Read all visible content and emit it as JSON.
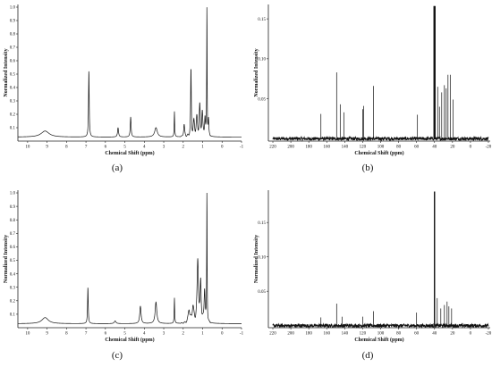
{
  "chart_data": [
    {
      "id": "a",
      "type": "line",
      "caption": "(a)",
      "xlabel": "Chemical Shift (ppm)",
      "ylabel": "Normalized Intensity",
      "xlim": [
        10.5,
        -1
      ],
      "ylim": [
        0,
        1.02
      ],
      "xticks": [
        10,
        9,
        8,
        7,
        6,
        5,
        4,
        3,
        2,
        1,
        0,
        -1
      ],
      "yticks": [
        0.1,
        0.2,
        0.3,
        0.4,
        0.5,
        0.6,
        0.7,
        0.8,
        0.9,
        1.0
      ],
      "ytick_labels": [
        "0.1",
        "0.2",
        "0.3",
        "0.4",
        "0.5",
        "0.6",
        "0.7",
        "0.8",
        "0.9",
        "1.0"
      ],
      "xtick_labels": [
        "10",
        "9",
        "8",
        "7",
        "6",
        "5",
        "4",
        "3",
        "2",
        "1",
        "0",
        "-1"
      ],
      "baseline": 0.03,
      "peaks": [
        {
          "x": 9.1,
          "h": 0.045,
          "w": 0.25
        },
        {
          "x": 6.85,
          "h": 0.5,
          "w": 0.02
        },
        {
          "x": 5.35,
          "h": 0.07,
          "w": 0.03
        },
        {
          "x": 4.7,
          "h": 0.15,
          "w": 0.025
        },
        {
          "x": 3.4,
          "h": 0.07,
          "w": 0.08
        },
        {
          "x": 2.45,
          "h": 0.19,
          "w": 0.015
        },
        {
          "x": 1.95,
          "h": 0.09,
          "w": 0.03
        },
        {
          "x": 1.6,
          "h": 0.5,
          "w": 0.02
        },
        {
          "x": 1.45,
          "h": 0.1,
          "w": 0.04
        },
        {
          "x": 1.3,
          "h": 0.13,
          "w": 0.04
        },
        {
          "x": 1.15,
          "h": 0.22,
          "w": 0.03
        },
        {
          "x": 1.02,
          "h": 0.18,
          "w": 0.03
        },
        {
          "x": 0.88,
          "h": 0.14,
          "w": 0.025
        },
        {
          "x": 0.78,
          "h": 0.99,
          "w": 0.012
        },
        {
          "x": 0.7,
          "h": 0.12,
          "w": 0.02
        }
      ]
    },
    {
      "id": "b",
      "type": "line",
      "caption": "(b)",
      "xlabel": "Chemical Shift (ppm)",
      "ylabel": "Normalized Intensity",
      "xlim": [
        225,
        -22
      ],
      "ylim": [
        -0.003,
        0.168
      ],
      "xticks": [
        220,
        200,
        180,
        160,
        140,
        120,
        100,
        80,
        60,
        40,
        20,
        0,
        -20
      ],
      "yticks": [
        0.05,
        0.1,
        0.15
      ],
      "ytick_labels": [
        "0.05",
        "0.10",
        "0.15"
      ],
      "xtick_labels": [
        "220",
        "200",
        "180",
        "160",
        "140",
        "120",
        "100",
        "80",
        "60",
        "40",
        "20",
        "0",
        "-20"
      ],
      "baseline": 0.0,
      "peaks": [
        {
          "x": 166.5,
          "h": 0.031
        },
        {
          "x": 149,
          "h": 0.083
        },
        {
          "x": 145,
          "h": 0.043
        },
        {
          "x": 141,
          "h": 0.033
        },
        {
          "x": 120,
          "h": 0.037
        },
        {
          "x": 119,
          "h": 0.041
        },
        {
          "x": 108,
          "h": 0.066
        },
        {
          "x": 59,
          "h": 0.03
        },
        {
          "x": 40.5,
          "h": 0.166
        },
        {
          "x": 39.5,
          "h": 0.166
        },
        {
          "x": 36.5,
          "h": 0.065
        },
        {
          "x": 34.5,
          "h": 0.04
        },
        {
          "x": 32,
          "h": 0.058
        },
        {
          "x": 29,
          "h": 0.067
        },
        {
          "x": 27,
          "h": 0.063
        },
        {
          "x": 25,
          "h": 0.08
        },
        {
          "x": 22.5,
          "h": 0.08
        },
        {
          "x": 19.5,
          "h": 0.049
        }
      ]
    },
    {
      "id": "c",
      "type": "line",
      "caption": "(c)",
      "xlabel": "Chemical Shift (ppm)",
      "ylabel": "Normalized Intensity",
      "xlim": [
        10.5,
        -1
      ],
      "ylim": [
        0,
        1.02
      ],
      "xticks": [
        10,
        9,
        8,
        7,
        6,
        5,
        4,
        3,
        2,
        1,
        0,
        -1
      ],
      "yticks": [
        0.1,
        0.2,
        0.3,
        0.4,
        0.5,
        0.6,
        0.7,
        0.8,
        0.9,
        1.0
      ],
      "ytick_labels": [
        "0.1",
        "0.2",
        "0.3",
        "0.4",
        "0.5",
        "0.6",
        "0.7",
        "0.8",
        "0.9",
        "1.0"
      ],
      "xtick_labels": [
        "10",
        "9",
        "8",
        "7",
        "6",
        "5",
        "4",
        "3",
        "2",
        "1",
        "0",
        "-1"
      ],
      "baseline": 0.03,
      "peaks": [
        {
          "x": 9.1,
          "h": 0.045,
          "w": 0.2
        },
        {
          "x": 6.9,
          "h": 0.27,
          "w": 0.02
        },
        {
          "x": 5.5,
          "h": 0.02,
          "w": 0.05
        },
        {
          "x": 4.2,
          "h": 0.13,
          "w": 0.04
        },
        {
          "x": 3.4,
          "h": 0.16,
          "w": 0.05
        },
        {
          "x": 2.45,
          "h": 0.19,
          "w": 0.015
        },
        {
          "x": 1.7,
          "h": 0.1,
          "w": 0.05
        },
        {
          "x": 1.5,
          "h": 0.12,
          "w": 0.05
        },
        {
          "x": 1.25,
          "h": 0.47,
          "w": 0.04
        },
        {
          "x": 1.1,
          "h": 0.3,
          "w": 0.03
        },
        {
          "x": 0.9,
          "h": 0.25,
          "w": 0.03
        },
        {
          "x": 0.78,
          "h": 0.99,
          "w": 0.012
        }
      ]
    },
    {
      "id": "d",
      "type": "line",
      "caption": "(d)",
      "xlabel": "Chemical Shift (ppm)",
      "ylabel": "Normalized Intensity",
      "xlim": [
        225,
        -22
      ],
      "ylim": [
        -0.003,
        0.197
      ],
      "xticks": [
        220,
        200,
        180,
        160,
        140,
        120,
        100,
        80,
        60,
        40,
        20,
        0,
        -20
      ],
      "yticks": [
        0.05,
        0.1,
        0.15
      ],
      "ytick_labels": [
        "0.05",
        "0.10",
        "0.15"
      ],
      "xtick_labels": [
        "220",
        "200",
        "180",
        "160",
        "140",
        "120",
        "100",
        "80",
        "60",
        "40",
        "20",
        "0",
        "-20"
      ],
      "baseline": 0.0,
      "peaks": [
        {
          "x": 166.5,
          "h": 0.012
        },
        {
          "x": 149,
          "h": 0.032
        },
        {
          "x": 143,
          "h": 0.013
        },
        {
          "x": 120,
          "h": 0.013
        },
        {
          "x": 108,
          "h": 0.021
        },
        {
          "x": 60,
          "h": 0.019
        },
        {
          "x": 40,
          "h": 0.195
        },
        {
          "x": 37,
          "h": 0.04
        },
        {
          "x": 33,
          "h": 0.025
        },
        {
          "x": 29,
          "h": 0.03
        },
        {
          "x": 26,
          "h": 0.035
        },
        {
          "x": 24,
          "h": 0.028
        },
        {
          "x": 21,
          "h": 0.025
        }
      ]
    }
  ]
}
